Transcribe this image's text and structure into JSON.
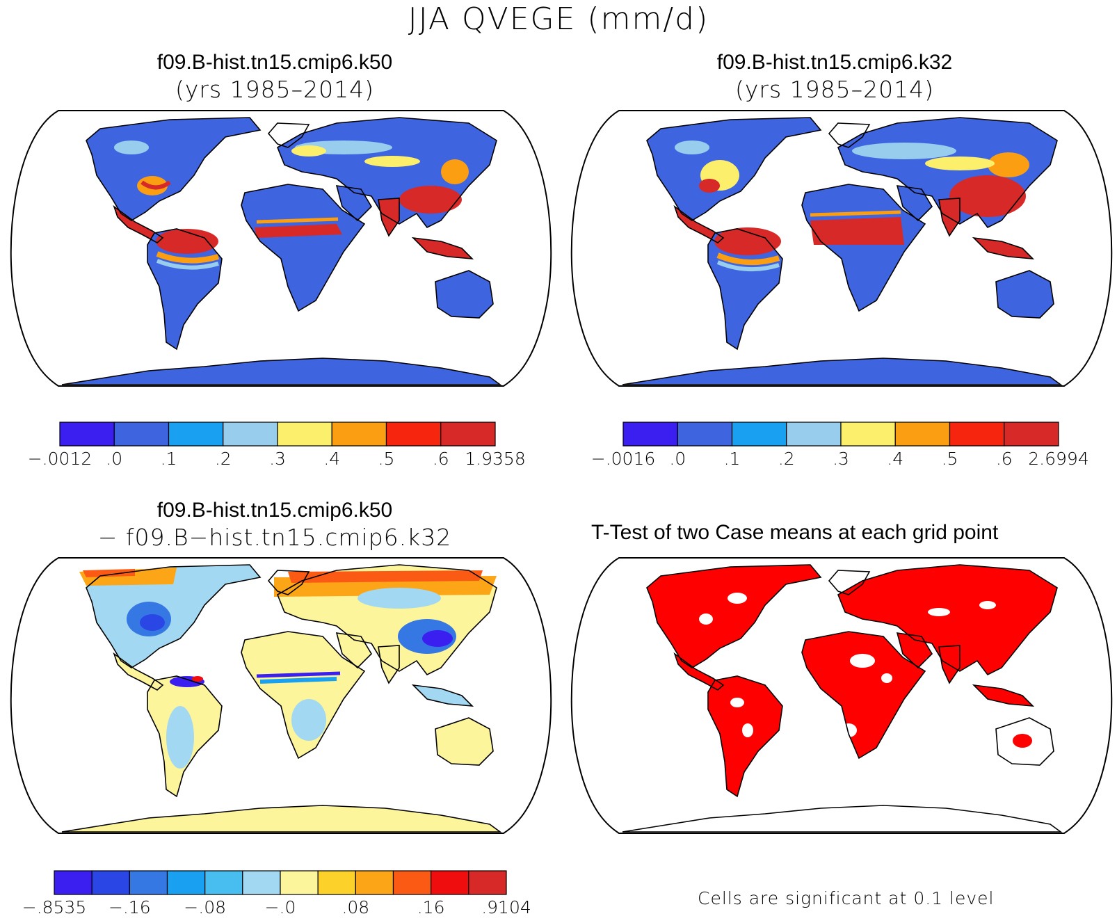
{
  "title": "JJA QVEGE (mm/d)",
  "panels": {
    "top_left": {
      "case": "f09.B-hist.tn15.cmip6.k50",
      "years": "(yrs 1985–2014)",
      "colorbar": {
        "colors": [
          "#3a1ff0",
          "#3f64e0",
          "#1aa0f0",
          "#98cdee",
          "#fcef6b",
          "#fc9e12",
          "#f5250e",
          "#d62928"
        ],
        "labels": [
          "−.0012",
          ".0",
          ".1",
          ".2",
          ".3",
          ".4",
          ".5",
          ".6",
          "1.9358"
        ]
      }
    },
    "top_right": {
      "case": "f09.B-hist.tn15.cmip6.k32",
      "years": "(yrs 1985–2014)",
      "colorbar": {
        "colors": [
          "#3a1ff0",
          "#3f64e0",
          "#1aa0f0",
          "#98cdee",
          "#fcef6b",
          "#fc9e12",
          "#f5250e",
          "#d62928"
        ],
        "labels": [
          "−.0016",
          ".0",
          ".1",
          ".2",
          ".3",
          ".4",
          ".5",
          ".6",
          "2.6994"
        ]
      }
    },
    "bottom_left": {
      "case": "f09.B-hist.tn15.cmip6.k50",
      "minus_line": "− f09.B−hist.tn15.cmip6.k32",
      "colorbar": {
        "colors": [
          "#3a1ff0",
          "#2a47e6",
          "#3578e4",
          "#1aa0f0",
          "#48bdf0",
          "#a3d8f2",
          "#fdf59c",
          "#fcd22a",
          "#fca516",
          "#fb5a14",
          "#ef0d0d",
          "#d62928"
        ],
        "labels": [
          "−.8535",
          "−.16",
          "−.08",
          "−.0",
          ".08",
          ".16",
          ".9104"
        ]
      }
    },
    "bottom_right": {
      "title": "T-Test of two Case means at each grid point",
      "note": "Cells are significant at 0.1 level",
      "sig_color": "#ff0000"
    }
  }
}
